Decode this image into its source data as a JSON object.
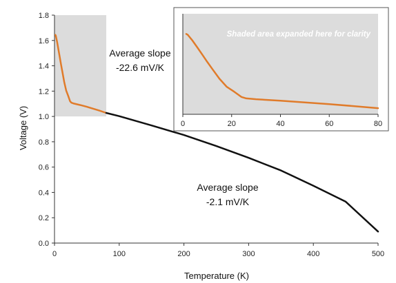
{
  "chart_data": [
    {
      "type": "line",
      "panel": "main",
      "xlabel": "Temperature (K)",
      "ylabel": "Voltage (V)",
      "xlim": [
        0,
        500
      ],
      "ylim": [
        0,
        1.8
      ],
      "xticks": [
        0,
        100,
        200,
        300,
        400,
        500
      ],
      "yticks": [
        0.0,
        0.2,
        0.4,
        0.6,
        0.8,
        1.0,
        1.2,
        1.4,
        1.6,
        1.8
      ],
      "xtick_labels": [
        "0",
        "100",
        "200",
        "300",
        "400",
        "500"
      ],
      "ytick_labels": [
        "0.0",
        "0.2",
        "0.4",
        "0.6",
        "0.8",
        "1.0",
        "1.2",
        "1.4",
        "1.6",
        "1.8"
      ],
      "grid": false,
      "shaded_region": {
        "x": [
          0,
          80
        ],
        "y": [
          1.0,
          1.8
        ],
        "color": "#dcdcdc"
      },
      "series": [
        {
          "color": "#e07b2a",
          "x": [
            1.4,
            2,
            4,
            6,
            8,
            10,
            12,
            15,
            18,
            21,
            24,
            26,
            30,
            40,
            50,
            60,
            70,
            80
          ],
          "y": [
            1.644,
            1.637,
            1.588,
            1.531,
            1.472,
            1.412,
            1.356,
            1.272,
            1.205,
            1.165,
            1.121,
            1.109,
            1.102,
            1.09,
            1.076,
            1.061,
            1.045,
            1.028
          ]
        },
        {
          "color": "#111111",
          "x": [
            80,
            100,
            150,
            200,
            250,
            300,
            350,
            400,
            450,
            500
          ],
          "y": [
            1.028,
            1.002,
            0.929,
            0.853,
            0.766,
            0.673,
            0.573,
            0.453,
            0.327,
            0.091
          ]
        }
      ],
      "annotations": [
        {
          "text_line1": "Average slope",
          "text_line2": "-22.6 mV/K"
        },
        {
          "text_line1": "Average slope",
          "text_line2": "-2.1 mV/K"
        }
      ]
    },
    {
      "type": "line",
      "panel": "inset",
      "xlim": [
        0,
        80
      ],
      "ylim": [
        1.0,
        1.8
      ],
      "xticks": [
        0,
        20,
        40,
        60,
        80
      ],
      "xtick_labels": [
        "0",
        "20",
        "40",
        "60",
        "80"
      ],
      "background": "#dcdcdc",
      "note": "Shaded area expanded here for clarity",
      "series": [
        {
          "color": "#e07b2a",
          "x": [
            1.4,
            2,
            4,
            6,
            8,
            10,
            12,
            15,
            18,
            21,
            24,
            26,
            30,
            40,
            50,
            60,
            70,
            80
          ],
          "y": [
            1.644,
            1.637,
            1.588,
            1.531,
            1.472,
            1.412,
            1.356,
            1.272,
            1.205,
            1.165,
            1.121,
            1.109,
            1.102,
            1.09,
            1.076,
            1.061,
            1.045,
            1.028
          ]
        }
      ]
    }
  ]
}
